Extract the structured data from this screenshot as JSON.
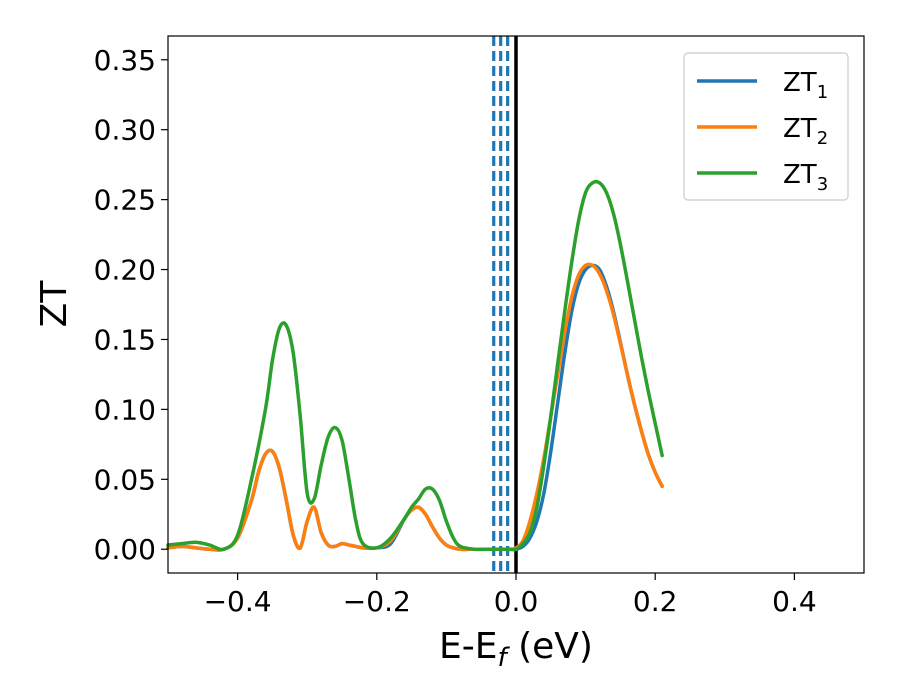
{
  "chart_data": {
    "type": "line",
    "xlabel": "E-E",
    "xlabel_sub": "f",
    "xlabel_unit": "(eV)",
    "ylabel": "ZT",
    "xlim": [
      -0.5,
      0.5
    ],
    "ylim": [
      -0.017,
      0.367
    ],
    "xticks": [
      -0.4,
      -0.2,
      0.0,
      0.2,
      0.4
    ],
    "xtick_labels": [
      "−0.4",
      "−0.2",
      "0.0",
      "0.2",
      "0.4"
    ],
    "yticks": [
      0.0,
      0.05,
      0.1,
      0.15,
      0.2,
      0.25,
      0.3,
      0.35
    ],
    "ytick_labels": [
      "0.00",
      "0.05",
      "0.10",
      "0.15",
      "0.20",
      "0.25",
      "0.30",
      "0.35"
    ],
    "grid": false,
    "legend_position": "top-right",
    "vertical_lines": [
      {
        "x": -0.032,
        "style": "dashed",
        "color": "#1f77b4"
      },
      {
        "x": -0.022,
        "style": "dashed",
        "color": "#1f77b4"
      },
      {
        "x": -0.012,
        "style": "dashed",
        "color": "#1f77b4"
      },
      {
        "x": 0.0,
        "style": "solid",
        "color": "#000000"
      }
    ],
    "series": [
      {
        "name": "ZT",
        "name_sub": "1",
        "color": "#1f77b4",
        "x": [
          -0.5,
          -0.48,
          -0.46,
          -0.44,
          -0.42,
          -0.4,
          -0.38,
          -0.37,
          -0.36,
          -0.35,
          -0.34,
          -0.33,
          -0.32,
          -0.31,
          -0.3,
          -0.29,
          -0.28,
          -0.27,
          -0.26,
          -0.25,
          -0.24,
          -0.23,
          -0.22,
          -0.2,
          -0.18,
          -0.16,
          -0.15,
          -0.14,
          -0.13,
          -0.12,
          -0.11,
          -0.1,
          -0.09,
          -0.08,
          -0.06,
          -0.04,
          -0.02,
          -0.01,
          0.0,
          0.01,
          0.02,
          0.03,
          0.04,
          0.05,
          0.06,
          0.07,
          0.08,
          0.09,
          0.1,
          0.11,
          0.12,
          0.13,
          0.14,
          0.15,
          0.16,
          0.17,
          0.18,
          0.19,
          0.2,
          0.21
        ],
        "y": [
          0.001,
          0.002,
          0.001,
          0.0,
          0.0,
          0.008,
          0.035,
          0.055,
          0.068,
          0.07,
          0.058,
          0.035,
          0.01,
          0.001,
          0.02,
          0.03,
          0.012,
          0.003,
          0.002,
          0.004,
          0.003,
          0.002,
          0.001,
          0.001,
          0.004,
          0.022,
          0.028,
          0.03,
          0.025,
          0.016,
          0.008,
          0.003,
          0.001,
          0.0,
          0.0,
          0.0,
          0.0,
          0.0,
          0.0,
          0.002,
          0.008,
          0.02,
          0.04,
          0.07,
          0.105,
          0.14,
          0.17,
          0.19,
          0.2,
          0.203,
          0.2,
          0.188,
          0.17,
          0.148,
          0.125,
          0.104,
          0.085,
          0.068,
          0.055,
          0.045
        ]
      },
      {
        "name": "ZT",
        "name_sub": "2",
        "color": "#ff7f0e",
        "x": [
          -0.5,
          -0.48,
          -0.46,
          -0.44,
          -0.42,
          -0.4,
          -0.38,
          -0.37,
          -0.36,
          -0.35,
          -0.34,
          -0.33,
          -0.32,
          -0.31,
          -0.3,
          -0.29,
          -0.28,
          -0.27,
          -0.26,
          -0.25,
          -0.24,
          -0.23,
          -0.22,
          -0.2,
          -0.18,
          -0.16,
          -0.15,
          -0.14,
          -0.13,
          -0.12,
          -0.11,
          -0.1,
          -0.09,
          -0.08,
          -0.06,
          -0.04,
          -0.02,
          -0.01,
          0.0,
          0.01,
          0.02,
          0.03,
          0.04,
          0.05,
          0.06,
          0.07,
          0.08,
          0.09,
          0.1,
          0.11,
          0.12,
          0.13,
          0.14,
          0.15,
          0.16,
          0.17,
          0.18,
          0.19,
          0.2,
          0.21
        ],
        "y": [
          0.001,
          0.002,
          0.001,
          0.0,
          0.0,
          0.008,
          0.035,
          0.055,
          0.068,
          0.07,
          0.058,
          0.035,
          0.01,
          0.001,
          0.02,
          0.03,
          0.012,
          0.003,
          0.002,
          0.004,
          0.003,
          0.002,
          0.001,
          0.001,
          0.006,
          0.022,
          0.028,
          0.03,
          0.025,
          0.016,
          0.008,
          0.003,
          0.001,
          0.0,
          0.0,
          0.0,
          0.0,
          0.0,
          0.001,
          0.006,
          0.02,
          0.04,
          0.065,
          0.095,
          0.125,
          0.155,
          0.18,
          0.196,
          0.203,
          0.203,
          0.197,
          0.185,
          0.168,
          0.147,
          0.125,
          0.104,
          0.085,
          0.068,
          0.055,
          0.045
        ]
      },
      {
        "name": "ZT",
        "name_sub": "3",
        "color": "#2ca02c",
        "x": [
          -0.5,
          -0.48,
          -0.46,
          -0.44,
          -0.42,
          -0.4,
          -0.38,
          -0.36,
          -0.35,
          -0.34,
          -0.33,
          -0.32,
          -0.31,
          -0.3,
          -0.29,
          -0.28,
          -0.27,
          -0.26,
          -0.25,
          -0.24,
          -0.23,
          -0.22,
          -0.2,
          -0.18,
          -0.16,
          -0.15,
          -0.14,
          -0.13,
          -0.12,
          -0.11,
          -0.1,
          -0.09,
          -0.08,
          -0.06,
          -0.04,
          -0.02,
          -0.01,
          0.0,
          0.01,
          0.02,
          0.03,
          0.04,
          0.05,
          0.06,
          0.07,
          0.08,
          0.09,
          0.1,
          0.11,
          0.12,
          0.13,
          0.14,
          0.15,
          0.16,
          0.17,
          0.18,
          0.19,
          0.2,
          0.21
        ],
        "y": [
          0.003,
          0.004,
          0.005,
          0.003,
          0.0,
          0.01,
          0.05,
          0.1,
          0.135,
          0.158,
          0.16,
          0.14,
          0.095,
          0.04,
          0.036,
          0.06,
          0.08,
          0.087,
          0.078,
          0.05,
          0.02,
          0.004,
          0.001,
          0.008,
          0.022,
          0.03,
          0.036,
          0.043,
          0.043,
          0.035,
          0.02,
          0.008,
          0.002,
          0.0,
          0.0,
          0.0,
          0.0,
          0.0,
          0.004,
          0.012,
          0.03,
          0.06,
          0.095,
          0.133,
          0.17,
          0.205,
          0.235,
          0.255,
          0.262,
          0.262,
          0.255,
          0.24,
          0.218,
          0.192,
          0.165,
          0.138,
          0.113,
          0.09,
          0.067
        ]
      }
    ]
  }
}
